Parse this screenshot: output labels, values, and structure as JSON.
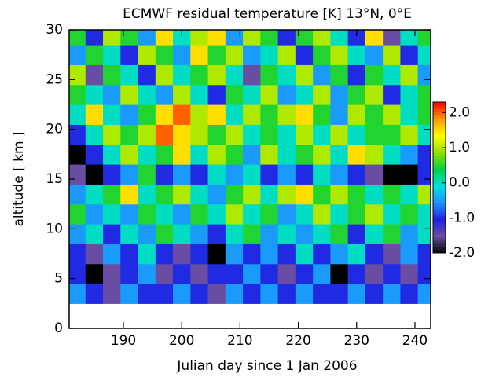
{
  "chart_data": {
    "type": "heatmap",
    "title": "ECMWF residual temperature [K]  13°N, 0°E",
    "x_label": "Julian day since 1 Jan 2006",
    "y_label": "altitude  [ km ]",
    "xlim": [
      180.7,
      242.7
    ],
    "xticks": [
      190,
      200,
      210,
      220,
      230,
      240
    ],
    "ylim": [
      0,
      30
    ],
    "yticks": [
      0,
      5,
      10,
      15,
      20,
      25,
      30
    ],
    "x": [
      182,
      185,
      188,
      191,
      194,
      197,
      200,
      203,
      206,
      209,
      212,
      215,
      218,
      221,
      224,
      227,
      230,
      233,
      236,
      239,
      242
    ],
    "y": [
      3.5,
      5.5,
      7.5,
      9.5,
      11.5,
      13.5,
      15.5,
      17.5,
      19.5,
      21.5,
      23.5,
      25.5,
      27.5,
      29.5
    ],
    "z": [
      [
        -0.5,
        -1,
        -1.5,
        -0.5,
        -1,
        -1,
        -0.5,
        -1,
        -1.5,
        -0.5,
        -1,
        -0.5,
        -1,
        -0.5,
        -1,
        -1,
        -0.5,
        -1,
        -0.5,
        -1,
        -0.5
      ],
      [
        -1,
        -2,
        -1.5,
        -1,
        -0.5,
        -1.5,
        -1,
        -1.5,
        -1,
        -1,
        -0.5,
        -1,
        -1.5,
        -1,
        -0.5,
        -2,
        -1,
        -1.5,
        -1,
        -1.5,
        -1
      ],
      [
        -1,
        -1.5,
        -0.5,
        -1,
        0,
        -1,
        -1.5,
        -1,
        -2,
        -0.5,
        -1,
        -0.5,
        -1,
        0,
        -1,
        -0.5,
        0,
        -1,
        -1.5,
        -0.5,
        -1
      ],
      [
        -0.5,
        0,
        -1,
        0,
        -0.5,
        0.5,
        0,
        -0.5,
        -1,
        0,
        0.5,
        -0.5,
        0,
        -0.5,
        0,
        0.5,
        -1,
        0,
        0.5,
        -0.5,
        0
      ],
      [
        0.5,
        -0.5,
        0,
        -0.5,
        0.5,
        0,
        -0.5,
        0.5,
        0,
        1,
        0,
        0.5,
        -0.5,
        0,
        1,
        0,
        0.5,
        1,
        0,
        0.5,
        0
      ],
      [
        -0.5,
        0,
        0.5,
        1.5,
        0,
        0.5,
        1,
        0,
        -0.5,
        0.5,
        1,
        0,
        1,
        1.5,
        0.5,
        1,
        0.5,
        0,
        0.5,
        0,
        1
      ],
      [
        -1.5,
        -2,
        -1,
        -0.5,
        0.5,
        -1,
        -0.5,
        -1,
        0,
        -0.5,
        0,
        -1,
        -0.5,
        -1,
        0,
        -0.5,
        -1,
        -1.5,
        -2,
        -2,
        -1
      ],
      [
        -2,
        -1,
        0,
        1,
        0,
        0.5,
        1.5,
        0,
        1,
        0.5,
        -0.5,
        1,
        0,
        0.5,
        1,
        0,
        1.5,
        1,
        0,
        -0.5,
        -1
      ],
      [
        -1,
        0,
        1,
        0.5,
        1,
        2,
        1.5,
        1,
        0.5,
        1,
        0,
        0.5,
        0,
        1,
        0,
        1,
        0,
        0.5,
        0.5,
        1,
        0
      ],
      [
        0,
        1.5,
        0,
        -0.5,
        0.5,
        1.5,
        2,
        1,
        1.5,
        0,
        1,
        0.5,
        1,
        1.5,
        0.5,
        -0.5,
        1,
        0.5,
        1,
        0,
        0.5
      ],
      [
        0.5,
        0,
        -0.5,
        1,
        0,
        -0.5,
        1,
        0,
        -1,
        0.5,
        0,
        1,
        -0.5,
        0,
        1,
        -0.5,
        0.5,
        1,
        -1,
        0,
        0.5
      ],
      [
        1,
        -1.5,
        0.5,
        0,
        -1,
        1,
        0,
        0.5,
        1,
        0,
        -1.5,
        0.5,
        0,
        1,
        -0.5,
        0.5,
        -1,
        0.5,
        0,
        1,
        -0.5
      ],
      [
        -0.5,
        0.5,
        0,
        -1,
        1,
        0.5,
        -0.5,
        1.5,
        0.5,
        1,
        -0.5,
        0,
        1,
        -1,
        0.5,
        1,
        0,
        -0.5,
        1,
        -1,
        0
      ],
      [
        0.5,
        -1,
        1,
        0.5,
        -0.5,
        1.5,
        0,
        1,
        1.5,
        -0.5,
        1,
        0.5,
        -1,
        0.5,
        1,
        0,
        -1,
        1.5,
        -1.5,
        0,
        0.5
      ]
    ],
    "colorbar": {
      "lim": [
        -2.0,
        2.3
      ],
      "ticks": [
        {
          "value": 2.0,
          "label": "2.0"
        },
        {
          "value": 1.0,
          "label": "1.0"
        },
        {
          "value": 0.0,
          "label": "0.0"
        },
        {
          "value": -1.0,
          "label": "-1.0"
        },
        {
          "value": -2.0,
          "label": "-2.0"
        }
      ],
      "colors": [
        "#000000",
        "#6b4fa0",
        "#2020e0",
        "#1e90ff",
        "#00e0e0",
        "#00d040",
        "#90e000",
        "#ffff00",
        "#ff9900",
        "#ff0000"
      ]
    }
  }
}
